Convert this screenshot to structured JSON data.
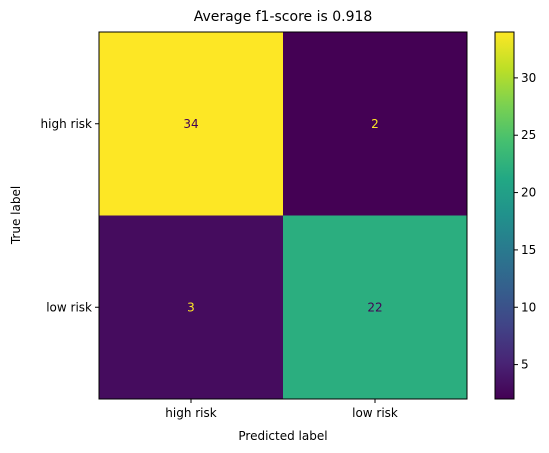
{
  "chart_data": {
    "type": "heatmap",
    "title": "Average f1-score is 0.918",
    "xlabel": "Predicted label",
    "ylabel": "True label",
    "row_labels": [
      "high risk",
      "low risk "
    ],
    "col_labels": [
      "high risk",
      "low risk"
    ],
    "values": [
      [
        34,
        2
      ],
      [
        3,
        22
      ]
    ],
    "colormap": "viridis",
    "colorbar": {
      "ticks": [
        5,
        10,
        15,
        20,
        25,
        30
      ],
      "range": [
        2,
        34
      ]
    },
    "colors": {
      "c34": "#fde725",
      "c22": "#2ab07f",
      "c3": "#46085c",
      "c2": "#440154",
      "label_on_dark": "#fde725",
      "label_on_light": "#440154"
    }
  }
}
